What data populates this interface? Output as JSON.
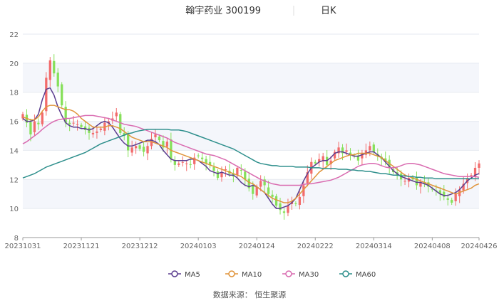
{
  "chart_data": {
    "type": "candlestick",
    "title_name": "翰宇药业 300199",
    "title_period": "日K",
    "source": "数据来源： 恒生聚源",
    "ylim": [
      8,
      22
    ],
    "yticks": [
      8,
      10,
      12,
      14,
      16,
      18,
      20,
      22
    ],
    "x_tick_labels": [
      "20231031",
      "20231121",
      "20231212",
      "20240103",
      "20240124",
      "20240222",
      "20240314",
      "20240408",
      "20240426"
    ],
    "x_tick_index": [
      0,
      15,
      30,
      45,
      60,
      75,
      90,
      105,
      117
    ],
    "up_color": "#f26b6b",
    "down_color": "#86e05a",
    "grid": true,
    "legend_position": "bottom",
    "legend": [
      {
        "name": "MA5",
        "color": "#5b3d8f"
      },
      {
        "name": "MA10",
        "color": "#e0943a"
      },
      {
        "name": "MA30",
        "color": "#d96bb0"
      },
      {
        "name": "MA60",
        "color": "#2e8f8c"
      }
    ],
    "close": [
      16.5,
      15.9,
      15.1,
      16.0,
      15.8,
      16.6,
      19.0,
      20.2,
      19.3,
      18.4,
      17.1,
      15.9,
      15.8,
      15.9,
      15.8,
      15.6,
      15.4,
      15.2,
      15.2,
      15.3,
      15.5,
      15.9,
      16.0,
      16.2,
      16.6,
      15.2,
      15.0,
      14.0,
      14.2,
      14.3,
      14.1,
      13.9,
      14.3,
      14.8,
      15.1,
      14.7,
      14.2,
      14.6,
      13.4,
      13.0,
      13.1,
      13.2,
      13.1,
      13.0,
      13.5,
      13.6,
      13.4,
      13.1,
      13.0,
      12.6,
      12.1,
      12.5,
      12.7,
      12.4,
      12.2,
      12.8,
      12.6,
      12.0,
      11.4,
      11.0,
      11.5,
      11.9,
      11.6,
      11.0,
      10.8,
      10.2,
      9.9,
      9.7,
      10.2,
      10.5,
      10.3,
      10.8,
      11.6,
      12.5,
      13.2,
      13.1,
      13.4,
      13.6,
      13.0,
      13.3,
      13.9,
      14.2,
      13.8,
      14.0,
      13.7,
      13.6,
      13.3,
      13.8,
      14.0,
      14.3,
      13.9,
      13.6,
      13.4,
      13.2,
      12.8,
      12.5,
      12.3,
      12.0,
      11.9,
      12.1,
      12.0,
      11.6,
      11.8,
      11.7,
      11.5,
      11.3,
      11.2,
      11.0,
      10.8,
      10.6,
      10.4,
      11.0,
      11.3,
      11.7,
      12.1,
      12.3,
      12.8,
      13.1
    ],
    "ma5": [
      16.2,
      16.0,
      16.0,
      16.1,
      16.5,
      17.5,
      18.2,
      18.3,
      17.8,
      17.0,
      16.4,
      15.9,
      15.7,
      15.6,
      15.6,
      15.5,
      15.5,
      15.4,
      15.5,
      15.7,
      15.9,
      16.0,
      15.9,
      15.6,
      15.2,
      14.8,
      14.5,
      14.3,
      14.3,
      14.4,
      14.5,
      14.6,
      14.7,
      14.7,
      14.6,
      14.4,
      14.0,
      13.7,
      13.4,
      13.3,
      13.3,
      13.3,
      13.3,
      13.4,
      13.4,
      13.3,
      13.1,
      12.9,
      12.6,
      12.5,
      12.4,
      12.5,
      12.4,
      12.3,
      12.3,
      12.1,
      11.8,
      11.6,
      11.5,
      11.6,
      11.5,
      11.3,
      11.1,
      10.7,
      10.3,
      10.0,
      10.0,
      10.1,
      10.2,
      10.4,
      10.7,
      11.3,
      11.9,
      12.4,
      12.8,
      13.0,
      13.2,
      13.3,
      13.3,
      13.5,
      13.8,
      13.9,
      13.9,
      13.8,
      13.7,
      13.6,
      13.6,
      13.7,
      13.8,
      13.9,
      13.9,
      13.7,
      13.5,
      13.2,
      12.9,
      12.6,
      12.4,
      12.2,
      12.1,
      12.0,
      11.9,
      11.8,
      11.8,
      11.7,
      11.6,
      11.4,
      11.2,
      11.0,
      10.9,
      10.9,
      11.0,
      11.1,
      11.3,
      11.6,
      11.9,
      12.1,
      12.3,
      12.4
    ],
    "ma10": [
      16.3,
      16.2,
      16.1,
      16.1,
      16.3,
      16.7,
      17.0,
      17.1,
      17.1,
      17.0,
      16.9,
      16.8,
      16.8,
      16.7,
      16.5,
      16.2,
      16.0,
      15.8,
      15.6,
      15.6,
      15.6,
      15.6,
      15.7,
      15.7,
      15.6,
      15.5,
      15.3,
      15.1,
      14.9,
      14.8,
      14.7,
      14.6,
      14.6,
      14.6,
      14.5,
      14.4,
      14.3,
      14.2,
      14.0,
      13.9,
      13.8,
      13.7,
      13.6,
      13.5,
      13.4,
      13.3,
      13.2,
      13.1,
      13.0,
      12.9,
      12.8,
      12.7,
      12.6,
      12.5,
      12.4,
      12.3,
      12.2,
      12.0,
      11.8,
      11.7,
      11.5,
      11.3,
      11.1,
      10.9,
      10.7,
      10.6,
      10.5,
      10.4,
      10.4,
      10.5,
      10.7,
      11.0,
      11.3,
      11.6,
      11.9,
      12.2,
      12.5,
      12.7,
      12.9,
      13.1,
      13.3,
      13.4,
      13.5,
      13.6,
      13.7,
      13.7,
      13.8,
      13.8,
      13.8,
      13.8,
      13.7,
      13.6,
      13.5,
      13.3,
      13.1,
      12.9,
      12.7,
      12.5,
      12.3,
      12.2,
      12.1,
      12.0,
      11.9,
      11.8,
      11.7,
      11.6,
      11.5,
      11.4,
      11.3,
      11.2,
      11.1,
      11.0,
      11.1,
      11.2,
      11.3,
      11.4,
      11.6,
      11.7
    ],
    "ma30": [
      14.45,
      14.6,
      14.8,
      15.0,
      15.2,
      15.45,
      15.65,
      15.85,
      16.0,
      16.1,
      16.15,
      16.2,
      16.2,
      16.25,
      16.3,
      16.35,
      16.4,
      16.4,
      16.4,
      16.35,
      16.3,
      16.25,
      16.2,
      16.1,
      16.0,
      15.9,
      15.8,
      15.75,
      15.7,
      15.65,
      15.55,
      15.45,
      15.35,
      15.25,
      15.15,
      15.05,
      14.95,
      14.85,
      14.7,
      14.55,
      14.45,
      14.35,
      14.25,
      14.15,
      14.05,
      13.95,
      13.85,
      13.75,
      13.7,
      13.65,
      13.55,
      13.45,
      13.35,
      13.2,
      13.05,
      12.9,
      12.75,
      12.6,
      12.45,
      12.3,
      12.15,
      12.0,
      11.9,
      11.8,
      11.7,
      11.65,
      11.6,
      11.6,
      11.6,
      11.6,
      11.6,
      11.6,
      11.65,
      11.7,
      11.7,
      11.75,
      11.8,
      11.85,
      11.9,
      11.95,
      12.05,
      12.15,
      12.3,
      12.45,
      12.6,
      12.75,
      12.9,
      13.0,
      13.05,
      13.1,
      13.1,
      13.05,
      12.95,
      12.85,
      12.8,
      12.8,
      12.85,
      12.95,
      13.05,
      13.1,
      13.1,
      13.05,
      13.0,
      12.9,
      12.8,
      12.7,
      12.6,
      12.5,
      12.4,
      12.35,
      12.3,
      12.25,
      12.2,
      12.2,
      12.2,
      12.2,
      12.2,
      12.15
    ],
    "ma60": [
      12.1,
      12.2,
      12.3,
      12.4,
      12.55,
      12.7,
      12.85,
      12.95,
      13.05,
      13.15,
      13.25,
      13.35,
      13.45,
      13.55,
      13.65,
      13.75,
      13.85,
      14.0,
      14.15,
      14.3,
      14.45,
      14.55,
      14.65,
      14.75,
      14.85,
      14.95,
      15.05,
      15.15,
      15.2,
      15.3,
      15.35,
      15.4,
      15.45,
      15.45,
      15.45,
      15.45,
      15.45,
      15.45,
      15.4,
      15.4,
      15.4,
      15.35,
      15.3,
      15.2,
      15.1,
      15.0,
      14.9,
      14.8,
      14.7,
      14.6,
      14.5,
      14.4,
      14.3,
      14.2,
      14.1,
      13.95,
      13.8,
      13.65,
      13.5,
      13.35,
      13.2,
      13.1,
      13.05,
      13.0,
      12.95,
      12.95,
      12.9,
      12.9,
      12.9,
      12.9,
      12.85,
      12.85,
      12.85,
      12.85,
      12.8,
      12.8,
      12.8,
      12.75,
      12.75,
      12.75,
      12.75,
      12.7,
      12.7,
      12.7,
      12.65,
      12.65,
      12.6,
      12.6,
      12.55,
      12.55,
      12.5,
      12.45,
      12.4,
      12.4,
      12.35,
      12.3,
      12.3,
      12.25,
      12.25,
      12.2,
      12.2,
      12.15,
      12.15,
      12.1,
      12.1,
      12.1,
      12.05,
      12.05,
      12.05,
      12.05,
      12.05,
      12.05,
      12.05,
      12.05,
      12.05,
      12.05,
      12.05,
      12.05
    ]
  }
}
